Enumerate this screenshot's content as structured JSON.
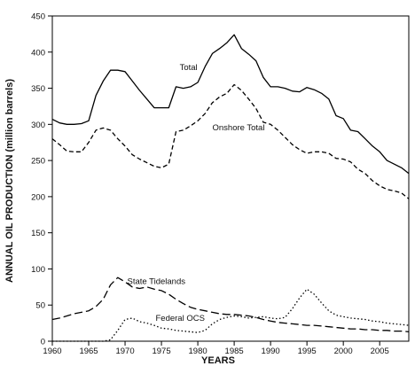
{
  "chart_data": {
    "type": "line",
    "xlabel": "YEARS",
    "ylabel": "ANNUAL OIL PRODUCTION (million barrels)",
    "xlim": [
      1960,
      2009
    ],
    "ylim": [
      0,
      450
    ],
    "xticks": [
      1960,
      1965,
      1970,
      1975,
      1980,
      1985,
      1990,
      1995,
      2000,
      2005
    ],
    "yticks": [
      0,
      50,
      100,
      150,
      200,
      250,
      300,
      350,
      400,
      450
    ],
    "grid": false,
    "series": [
      {
        "name": "Total",
        "style": "solid",
        "color": "#000000",
        "label_at": [
          1977.5,
          375
        ],
        "x": [
          1960,
          1961,
          1962,
          1963,
          1964,
          1965,
          1966,
          1967,
          1968,
          1969,
          1970,
          1971,
          1972,
          1973,
          1974,
          1975,
          1976,
          1977,
          1978,
          1979,
          1980,
          1981,
          1982,
          1983,
          1984,
          1985,
          1986,
          1987,
          1988,
          1989,
          1990,
          1991,
          1992,
          1993,
          1994,
          1995,
          1996,
          1997,
          1998,
          1999,
          2000,
          2001,
          2002,
          2003,
          2004,
          2005,
          2006,
          2007,
          2008,
          2009
        ],
        "values": [
          307,
          302,
          300,
          300,
          301,
          305,
          340,
          360,
          375,
          375,
          373,
          360,
          347,
          335,
          323,
          323,
          323,
          352,
          350,
          352,
          358,
          380,
          398,
          405,
          413,
          424,
          405,
          397,
          388,
          365,
          352,
          352,
          350,
          346,
          345,
          351,
          348,
          343,
          335,
          312,
          308,
          292,
          290,
          280,
          270,
          262,
          250,
          245,
          240,
          232
        ]
      },
      {
        "name": "Onshore Total",
        "style": "dashed",
        "color": "#000000",
        "label_at": [
          1982,
          292
        ],
        "x": [
          1960,
          1961,
          1962,
          1963,
          1964,
          1965,
          1966,
          1967,
          1968,
          1969,
          1970,
          1971,
          1972,
          1973,
          1974,
          1975,
          1976,
          1977,
          1978,
          1979,
          1980,
          1981,
          1982,
          1983,
          1984,
          1985,
          1986,
          1987,
          1988,
          1989,
          1990,
          1991,
          1992,
          1993,
          1994,
          1995,
          1996,
          1997,
          1998,
          1999,
          2000,
          2001,
          2002,
          2003,
          2004,
          2005,
          2006,
          2007,
          2008,
          2009
        ],
        "values": [
          280,
          272,
          263,
          262,
          262,
          275,
          292,
          295,
          292,
          280,
          270,
          258,
          252,
          247,
          242,
          240,
          245,
          290,
          292,
          298,
          305,
          315,
          330,
          338,
          343,
          355,
          347,
          335,
          322,
          303,
          300,
          292,
          282,
          272,
          265,
          260,
          262,
          262,
          260,
          253,
          252,
          248,
          238,
          232,
          222,
          215,
          210,
          208,
          205,
          197
        ]
      },
      {
        "name": "State Tidelands",
        "style": "longdash",
        "color": "#000000",
        "label_at": [
          1970.3,
          79
        ],
        "x": [
          1960,
          1961,
          1962,
          1963,
          1964,
          1965,
          1966,
          1967,
          1968,
          1969,
          1970,
          1971,
          1972,
          1973,
          1974,
          1975,
          1976,
          1977,
          1978,
          1979,
          1980,
          1981,
          1982,
          1983,
          1984,
          1985,
          1986,
          1987,
          1988,
          1989,
          1990,
          1991,
          1992,
          1993,
          1994,
          1995,
          1996,
          1997,
          1998,
          1999,
          2000,
          2001,
          2002,
          2003,
          2004,
          2005,
          2006,
          2007,
          2008,
          2009
        ],
        "values": [
          30,
          32,
          35,
          38,
          40,
          42,
          48,
          58,
          78,
          88,
          82,
          75,
          73,
          75,
          72,
          70,
          65,
          58,
          52,
          47,
          44,
          42,
          40,
          38,
          37,
          37,
          36,
          35,
          33,
          30,
          28,
          26,
          25,
          24,
          23,
          22,
          22,
          21,
          20,
          19,
          18,
          17,
          17,
          16,
          16,
          15,
          15,
          14,
          14,
          13
        ]
      },
      {
        "name": "Federal OCS",
        "style": "dotted",
        "color": "#000000",
        "label_at": [
          1974.2,
          28
        ],
        "x": [
          1960,
          1961,
          1962,
          1963,
          1964,
          1965,
          1966,
          1967,
          1968,
          1969,
          1970,
          1971,
          1972,
          1973,
          1974,
          1975,
          1976,
          1977,
          1978,
          1979,
          1980,
          1981,
          1982,
          1983,
          1984,
          1985,
          1986,
          1987,
          1988,
          1989,
          1990,
          1991,
          1992,
          1993,
          1994,
          1995,
          1996,
          1997,
          1998,
          1999,
          2000,
          2001,
          2002,
          2003,
          2004,
          2005,
          2006,
          2007,
          2008,
          2009
        ],
        "values": [
          0,
          0,
          0,
          0,
          0,
          0,
          0,
          0,
          2,
          15,
          30,
          32,
          27,
          25,
          22,
          18,
          17,
          15,
          14,
          13,
          12,
          15,
          24,
          30,
          33,
          35,
          34,
          32,
          33,
          34,
          32,
          31,
          33,
          45,
          60,
          72,
          65,
          53,
          42,
          36,
          34,
          32,
          31,
          30,
          28,
          27,
          25,
          24,
          23,
          22
        ]
      }
    ]
  }
}
